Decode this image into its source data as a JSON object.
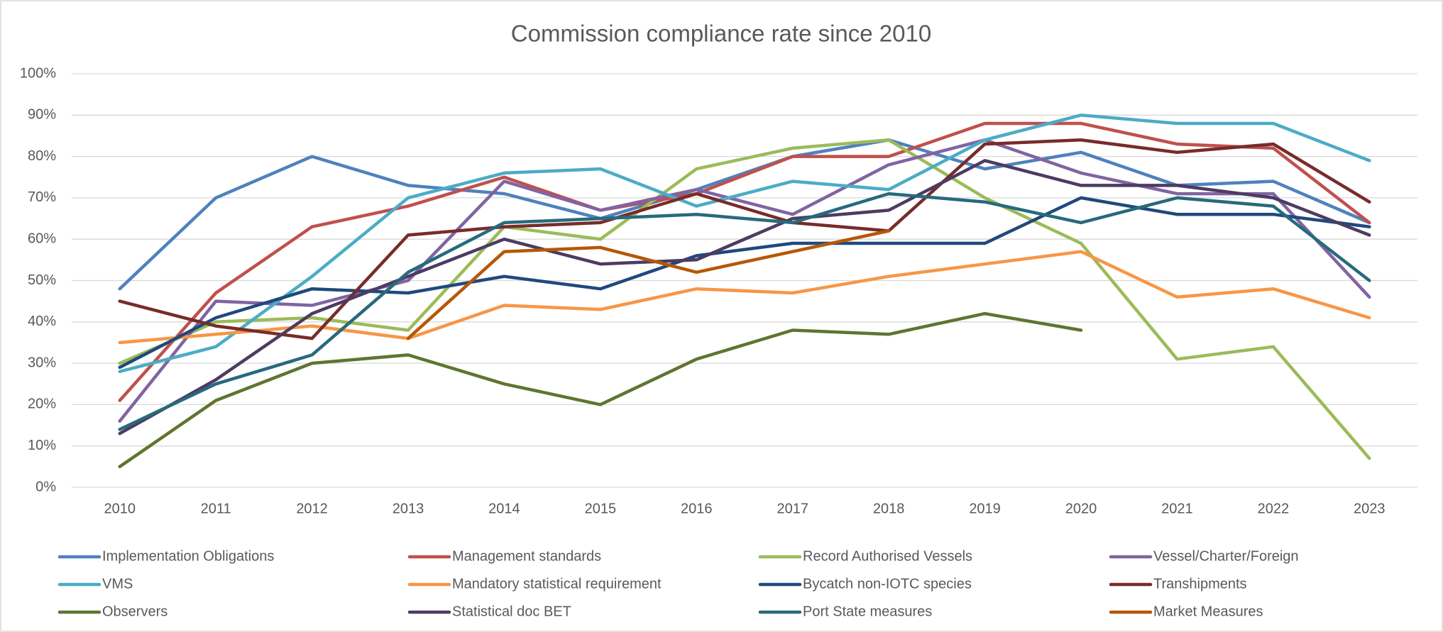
{
  "chart_data": {
    "type": "line",
    "title": "Commission compliance rate since 2010",
    "categories": [
      "2010",
      "2011",
      "2012",
      "2013",
      "2014",
      "2015",
      "2016",
      "2017",
      "2018",
      "2019",
      "2020",
      "2021",
      "2022",
      "2023"
    ],
    "ylim": [
      0,
      100
    ],
    "yticks": [
      {
        "value": 0,
        "label": "0%"
      },
      {
        "value": 10,
        "label": "10%"
      },
      {
        "value": 20,
        "label": "20%"
      },
      {
        "value": 30,
        "label": "30%"
      },
      {
        "value": 40,
        "label": "40%"
      },
      {
        "value": 50,
        "label": "50%"
      },
      {
        "value": 60,
        "label": "60%"
      },
      {
        "value": 70,
        "label": "70%"
      },
      {
        "value": 80,
        "label": "80%"
      },
      {
        "value": 90,
        "label": "90%"
      },
      {
        "value": 100,
        "label": "100%"
      }
    ],
    "grid": true,
    "legend": "bottom",
    "series": [
      {
        "name": "Implementation Obligations",
        "color": "#4f81bd",
        "values": [
          48,
          70,
          80,
          73,
          71,
          65,
          72,
          80,
          84,
          77,
          81,
          73,
          74,
          64
        ]
      },
      {
        "name": "Management standards",
        "color": "#c0504d",
        "values": [
          21,
          47,
          63,
          68,
          75,
          67,
          71,
          80,
          80,
          88,
          88,
          83,
          82,
          64
        ]
      },
      {
        "name": "Record Authorised Vessels",
        "color": "#9bbb59",
        "values": [
          30,
          40,
          41,
          38,
          63,
          60,
          77,
          82,
          84,
          70,
          59,
          31,
          34,
          7
        ]
      },
      {
        "name": "Vessel/Charter/Foreign",
        "color": "#8064a2",
        "values": [
          16,
          45,
          44,
          50,
          74,
          67,
          72,
          66,
          78,
          84,
          76,
          71,
          71,
          46
        ]
      },
      {
        "name": "VMS",
        "color": "#4bacc6",
        "values": [
          28,
          34,
          51,
          70,
          76,
          77,
          68,
          74,
          72,
          84,
          90,
          88,
          88,
          79
        ]
      },
      {
        "name": "Mandatory statistical requirement",
        "color": "#f79646",
        "values": [
          35,
          37,
          39,
          36,
          44,
          43,
          48,
          47,
          51,
          54,
          57,
          46,
          48,
          41
        ]
      },
      {
        "name": "Bycatch non-IOTC species",
        "color": "#1f497d",
        "values": [
          29,
          41,
          48,
          47,
          51,
          48,
          56,
          59,
          59,
          59,
          70,
          66,
          66,
          63
        ]
      },
      {
        "name": "Transhipments",
        "color": "#772c2a",
        "values": [
          45,
          39,
          36,
          61,
          63,
          64,
          71,
          64,
          62,
          83,
          84,
          81,
          83,
          69
        ]
      },
      {
        "name": "Observers",
        "color": "#5f7530",
        "values": [
          5,
          21,
          30,
          32,
          25,
          20,
          31,
          38,
          37,
          42,
          38,
          null,
          null,
          null
        ]
      },
      {
        "name": "Statistical doc BET",
        "color": "#4d3b62",
        "values": [
          13,
          26,
          42,
          51,
          60,
          54,
          55,
          65,
          67,
          79,
          73,
          73,
          70,
          61
        ]
      },
      {
        "name": "Port State measures",
        "color": "#276a7c",
        "values": [
          14,
          25,
          32,
          52,
          64,
          65,
          66,
          64,
          71,
          69,
          64,
          70,
          68,
          50
        ]
      },
      {
        "name": "Market Measures",
        "color": "#b65708",
        "values": [
          null,
          null,
          null,
          36,
          57,
          58,
          52,
          57,
          62,
          null,
          null,
          null,
          null,
          null
        ]
      }
    ]
  }
}
